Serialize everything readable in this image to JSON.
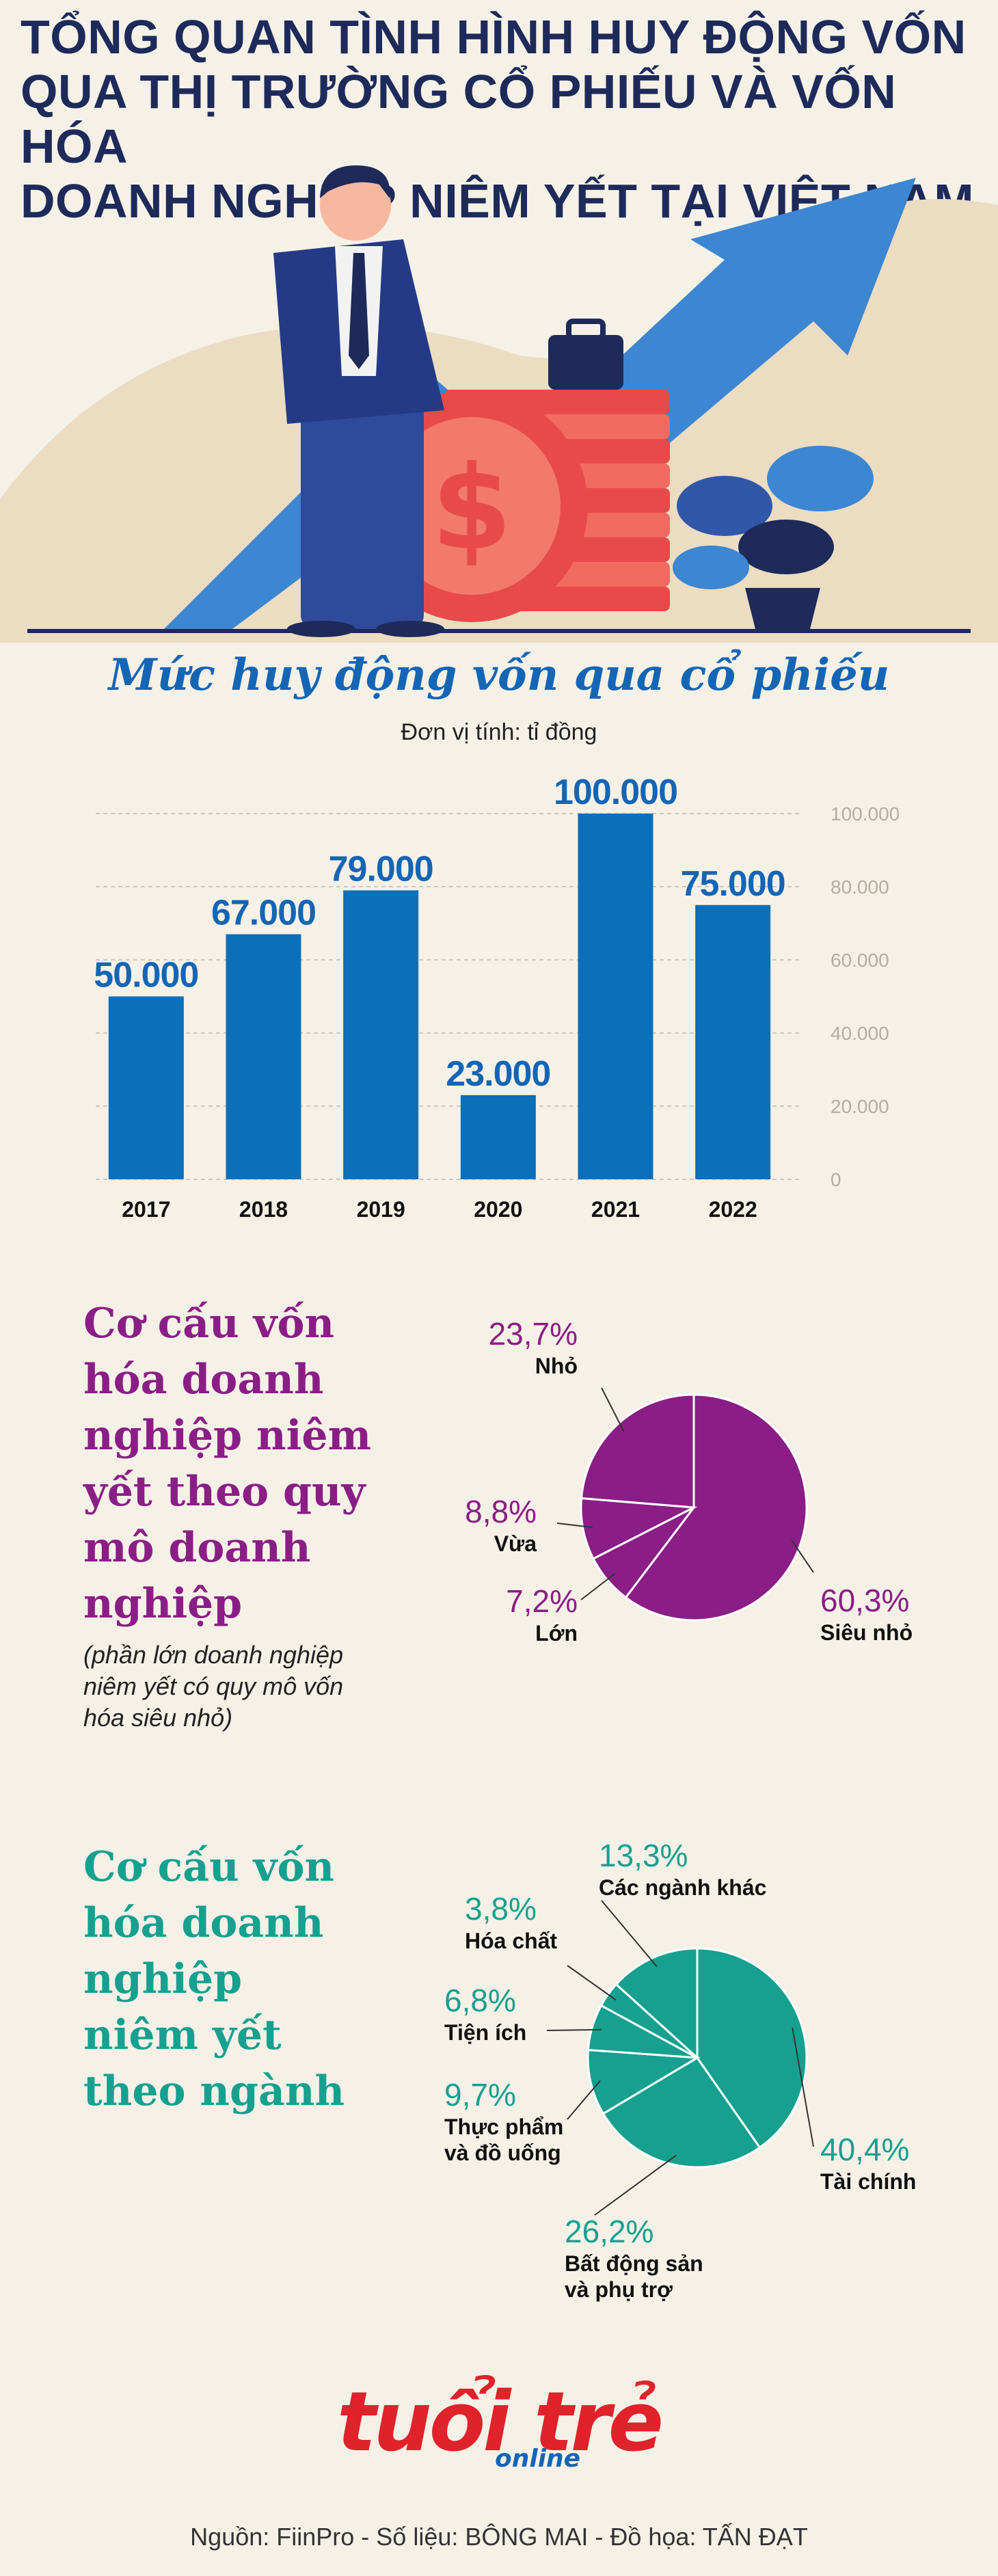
{
  "hero": {
    "title_lines": [
      "TỔNG QUAN TÌNH HÌNH HUY ĐỘNG VỐN",
      "QUA THỊ TRƯỜNG CỔ PHIẾU VÀ VỐN HÓA",
      "DOANH NGHIỆP NIÊM YẾT TẠI VIỆT NAM"
    ],
    "coin_symbol": "$"
  },
  "bar_section": {
    "title": "Mức huy động vốn qua cổ phiếu",
    "unit": "Đơn vị tính: tỉ đồng"
  },
  "size_section": {
    "title_lines": [
      "Cơ cấu vốn",
      "hóa doanh",
      "nghiệp niêm",
      "yết theo quy",
      "mô doanh",
      "nghiệp"
    ],
    "note_lines": [
      "(phần lớn doanh nghiệp",
      "niêm yết có quy mô vốn",
      "hóa siêu nhỏ)"
    ]
  },
  "sector_section": {
    "title_lines": [
      "Cơ cấu vốn",
      "hóa doanh",
      "nghiệp",
      "niêm yết",
      "theo ngành"
    ]
  },
  "colors": {
    "bar": "#0b6fba",
    "bar_label": "#1565b5",
    "size_pie": "#8a1e86",
    "sector_pie": "#16a08f"
  },
  "chart_data": [
    {
      "type": "bar",
      "title": "Mức huy động vốn qua cổ phiếu",
      "ylabel": "Đơn vị tính: tỉ đồng",
      "categories": [
        "2017",
        "2018",
        "2019",
        "2020",
        "2021",
        "2022"
      ],
      "values": [
        50000,
        67000,
        79000,
        23000,
        100000,
        75000
      ],
      "value_labels": [
        "50.000",
        "67.000",
        "79.000",
        "23.000",
        "100.000",
        "75.000"
      ],
      "ylim": [
        0,
        100000
      ],
      "yticks": [
        "0",
        "20.000",
        "40.000",
        "60.000",
        "80.000",
        "100.000"
      ],
      "ytick_values": [
        0,
        20000,
        40000,
        60000,
        80000,
        100000
      ],
      "grid": true
    },
    {
      "type": "pie",
      "title": "Cơ cấu vốn hóa doanh nghiệp niêm yết theo quy mô doanh nghiệp",
      "slices": [
        {
          "label": "Siêu nhỏ",
          "value": 60.3,
          "text": "60,3%"
        },
        {
          "label": "Lớn",
          "value": 7.2,
          "text": "7,2%"
        },
        {
          "label": "Vừa",
          "value": 8.8,
          "text": "8,8%"
        },
        {
          "label": "Nhỏ",
          "value": 23.7,
          "text": "23,7%"
        }
      ]
    },
    {
      "type": "pie",
      "title": "Cơ cấu vốn hóa doanh nghiệp niêm yết theo ngành",
      "slices": [
        {
          "label": "Tài chính",
          "value": 40.4,
          "text": "40,4%"
        },
        {
          "label": "Bất động sản và phụ trợ",
          "value": 26.2,
          "text": "26,2%"
        },
        {
          "label": "Thực phẩm và đồ uống",
          "value": 9.7,
          "text": "9,7%"
        },
        {
          "label": "Tiện ích",
          "value": 6.8,
          "text": "6,8%"
        },
        {
          "label": "Hóa chất",
          "value": 3.8,
          "text": "3,8%"
        },
        {
          "label": "Các ngành khác",
          "value": 13.3,
          "text": "13,3%"
        }
      ]
    }
  ],
  "logo": {
    "main": "tuổi trẻ",
    "sub": "online"
  },
  "credits": "Nguồn: FiinPro - Số liệu: BÔNG MAI - Đồ họa: TẤN ĐẠT"
}
